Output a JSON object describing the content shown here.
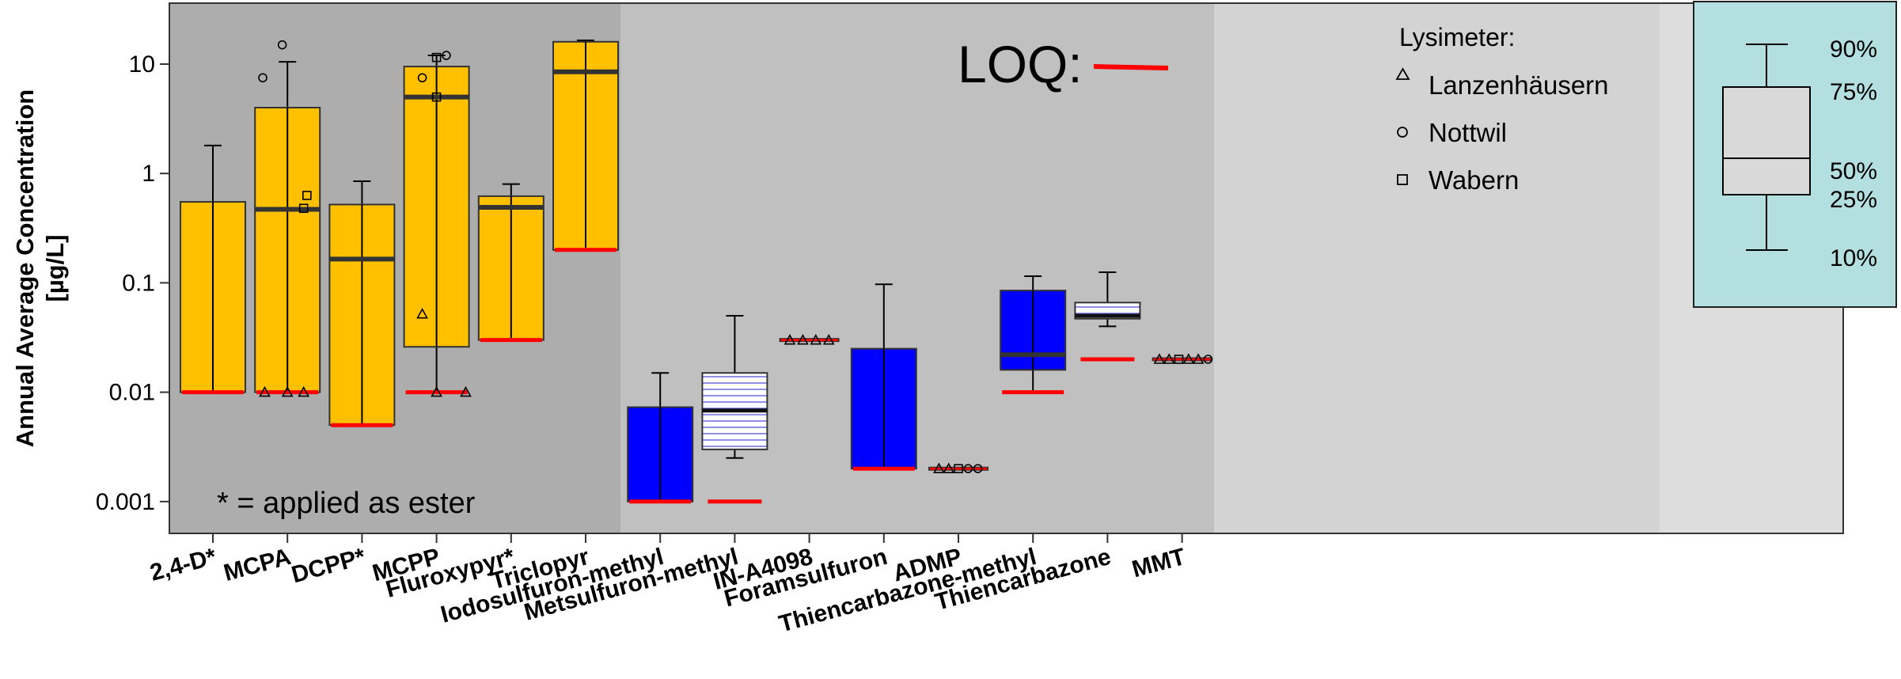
{
  "chart_data": {
    "type": "box",
    "ylabel_line1": "Annual Average Concentration",
    "ylabel_line2": "[µg/L]",
    "yscale": "log",
    "ylim": [
      0.0006,
      40
    ],
    "yticks": [
      {
        "value": 0.001,
        "label": "0.001"
      },
      {
        "value": 0.01,
        "label": "0.01"
      },
      {
        "value": 0.1,
        "label": "0.1"
      },
      {
        "value": 1,
        "label": "1"
      },
      {
        "value": 10,
        "label": "10"
      }
    ],
    "note": "* = applied as ester",
    "loq_label": "LOQ:",
    "legend": {
      "title": "Lysimeter:",
      "items": [
        {
          "label": "Lanzenhäusern",
          "marker": "triangle"
        },
        {
          "label": "Nottwil",
          "marker": "circle"
        },
        {
          "label": "Wabern",
          "marker": "square"
        }
      ]
    },
    "box_key": {
      "labels": [
        "90%",
        "75%",
        "50%",
        "25%",
        "10%"
      ]
    },
    "colors": {
      "auxin": "#ffc000",
      "sulfonylurea": "#0000ff",
      "hatched": "#ffffff",
      "hatch_line": "#6a6ae0",
      "loq": "#ff0000",
      "band_1": "#adadad",
      "band_2": "#c0c0c0",
      "band_3": "#d3d3d3",
      "band_4": "#dddddd",
      "key_bg": "#b4dfe0"
    },
    "groups": [
      {
        "name": "2,4-D*",
        "style": "auxin",
        "p10": 0.01,
        "p25": 0.01,
        "median": null,
        "p75": 0.55,
        "p90": 1.8,
        "loq": 0.01,
        "points": []
      },
      {
        "name": "MCPA",
        "style": "auxin",
        "p10": 0.01,
        "p25": 0.01,
        "median": 0.47,
        "p75": 4.0,
        "p90": 10.5,
        "loq": 0.01,
        "points": [
          {
            "dx": -0.38,
            "value": 7.5,
            "marker": "circle"
          },
          {
            "dx": -0.08,
            "value": 15,
            "marker": "circle"
          },
          {
            "dx": 0.3,
            "value": 0.63,
            "marker": "square"
          },
          {
            "dx": 0.25,
            "value": 0.48,
            "marker": "square"
          },
          {
            "dx": -0.35,
            "value": 0.01,
            "marker": "triangle"
          },
          {
            "dx": 0.0,
            "value": 0.01,
            "marker": "triangle"
          },
          {
            "dx": 0.25,
            "value": 0.01,
            "marker": "triangle"
          }
        ]
      },
      {
        "name": "DCPP*",
        "style": "auxin",
        "p10": 0.005,
        "p25": 0.005,
        "median": 0.165,
        "p75": 0.52,
        "p90": 0.85,
        "loq": 0.005,
        "points": []
      },
      {
        "name": "MCPP",
        "style": "auxin",
        "p10": 0.01,
        "p25": 0.026,
        "median": 5.0,
        "p75": 9.5,
        "p90": 12,
        "loq": 0.01,
        "points": [
          {
            "dx": -0.22,
            "value": 7.5,
            "marker": "circle"
          },
          {
            "dx": 0.15,
            "value": 12,
            "marker": "circle"
          },
          {
            "dx": 0.0,
            "value": 11.5,
            "marker": "square"
          },
          {
            "dx": 0.0,
            "value": 5.0,
            "marker": "square"
          },
          {
            "dx": -0.22,
            "value": 0.052,
            "marker": "triangle"
          },
          {
            "dx": 0.0,
            "value": 0.01,
            "marker": "triangle"
          },
          {
            "dx": 0.45,
            "value": 0.01,
            "marker": "triangle"
          }
        ]
      },
      {
        "name": "Fluroxypyr*",
        "style": "auxin",
        "p10": 0.03,
        "p25": 0.03,
        "median": 0.49,
        "p75": 0.62,
        "p90": 0.8,
        "loq": 0.03,
        "points": []
      },
      {
        "name": "Triclopyr",
        "style": "auxin",
        "p10": 0.2,
        "p25": 0.2,
        "median": 8.5,
        "p75": 16,
        "p90": 16.5,
        "loq": 0.2,
        "points": []
      },
      {
        "name": "Iodosulfuron-methyl",
        "style": "sulfonylurea",
        "p10": 0.001,
        "p25": 0.001,
        "median": null,
        "p75": 0.0073,
        "p90": 0.015,
        "loq": 0.001,
        "points": []
      },
      {
        "name": "Metsulfuron-methyl",
        "style": "hatched",
        "p10": 0.0025,
        "p25": 0.003,
        "median": 0.0068,
        "p75": 0.015,
        "p90": 0.05,
        "loq": 0.001,
        "loq_only": true,
        "points": []
      },
      {
        "name": "IN-A4098",
        "style": "auxin",
        "p10": 0.03,
        "p25": 0.03,
        "median": 0.03,
        "p75": 0.03,
        "p90": 0.03,
        "loq": 0.03,
        "flat": true,
        "points": [
          {
            "dx": -0.3,
            "value": 0.03,
            "marker": "triangle"
          },
          {
            "dx": -0.1,
            "value": 0.03,
            "marker": "triangle"
          },
          {
            "dx": 0.1,
            "value": 0.03,
            "marker": "triangle"
          },
          {
            "dx": 0.3,
            "value": 0.03,
            "marker": "triangle"
          }
        ]
      },
      {
        "name": "Foramsulfuron",
        "style": "sulfonylurea",
        "p10": 0.002,
        "p25": 0.002,
        "median": null,
        "p75": 0.025,
        "p90": 0.097,
        "loq": 0.002,
        "points": []
      },
      {
        "name": "ADMP",
        "style": "auxin",
        "p10": 0.002,
        "p25": 0.002,
        "median": 0.002,
        "p75": 0.002,
        "p90": 0.002,
        "loq": 0.002,
        "flat": true,
        "points": [
          {
            "dx": -0.3,
            "value": 0.002,
            "marker": "triangle"
          },
          {
            "dx": -0.15,
            "value": 0.002,
            "marker": "triangle"
          },
          {
            "dx": 0.0,
            "value": 0.002,
            "marker": "square"
          },
          {
            "dx": 0.15,
            "value": 0.002,
            "marker": "circle"
          },
          {
            "dx": 0.3,
            "value": 0.002,
            "marker": "circle"
          }
        ]
      },
      {
        "name": "Thiencarbazone-methyl",
        "style": "sulfonylurea",
        "p10": 0.01,
        "p25": 0.016,
        "median": 0.022,
        "p75": 0.085,
        "p90": 0.115,
        "loq": 0.01,
        "points": []
      },
      {
        "name": "Thiencarbazone",
        "style": "hatched",
        "p10": 0.04,
        "p25": 0.047,
        "median": 0.05,
        "p75": 0.066,
        "p90": 0.125,
        "loq": 0.02,
        "loq_only": true,
        "points": []
      },
      {
        "name": "MMT",
        "style": "auxin",
        "p10": 0.02,
        "p25": 0.02,
        "median": 0.02,
        "p75": 0.02,
        "p90": 0.02,
        "loq": 0.02,
        "flat": true,
        "points": [
          {
            "dx": -0.35,
            "value": 0.02,
            "marker": "triangle"
          },
          {
            "dx": -0.2,
            "value": 0.02,
            "marker": "triangle"
          },
          {
            "dx": -0.05,
            "value": 0.02,
            "marker": "square"
          },
          {
            "dx": 0.1,
            "value": 0.02,
            "marker": "triangle"
          },
          {
            "dx": 0.25,
            "value": 0.02,
            "marker": "triangle"
          },
          {
            "dx": 0.4,
            "value": 0.02,
            "marker": "circle"
          }
        ]
      }
    ]
  }
}
